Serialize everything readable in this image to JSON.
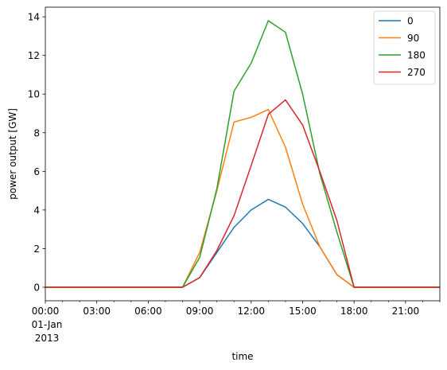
{
  "chart_data": {
    "type": "line",
    "title": "",
    "xlabel": "time",
    "ylabel": "power output [GW]",
    "xlim": [
      0,
      23
    ],
    "ylim": [
      -0.7,
      14.5
    ],
    "x": [
      0,
      1,
      2,
      3,
      4,
      5,
      6,
      7,
      8,
      9,
      10,
      11,
      12,
      13,
      14,
      15,
      16,
      17,
      18,
      19,
      20,
      21,
      22,
      23
    ],
    "x_ticks": [
      0,
      3,
      6,
      9,
      12,
      15,
      18,
      21
    ],
    "x_tick_labels": [
      "00:00",
      "03:00",
      "06:00",
      "09:00",
      "12:00",
      "15:00",
      "18:00",
      "21:00"
    ],
    "x_date_label": [
      "01-Jan",
      "2013"
    ],
    "y_ticks": [
      0,
      2,
      4,
      6,
      8,
      10,
      12,
      14
    ],
    "y_tick_labels": [
      "0",
      "2",
      "4",
      "6",
      "8",
      "10",
      "12",
      "14"
    ],
    "grid": false,
    "legend_position": "top-right",
    "series": [
      {
        "name": "0",
        "color": "#1f77b4",
        "values": [
          0,
          0,
          0,
          0,
          0,
          0,
          0,
          0,
          0,
          0.5,
          1.8,
          3.1,
          4.0,
          4.55,
          4.15,
          3.3,
          2.1,
          0.65,
          0,
          0,
          0,
          0,
          0,
          0
        ]
      },
      {
        "name": "90",
        "color": "#ff7f0e",
        "values": [
          0,
          0,
          0,
          0,
          0,
          0,
          0,
          0,
          0,
          1.8,
          5.0,
          8.55,
          8.8,
          9.2,
          7.25,
          4.3,
          2.1,
          0.65,
          0,
          0,
          0,
          0,
          0,
          0
        ]
      },
      {
        "name": "180",
        "color": "#2ca02c",
        "values": [
          0,
          0,
          0,
          0,
          0,
          0,
          0,
          0,
          0,
          1.55,
          5.1,
          10.15,
          11.6,
          13.8,
          13.2,
          10.0,
          5.9,
          2.85,
          0,
          0,
          0,
          0,
          0,
          0
        ]
      },
      {
        "name": "270",
        "color": "#d62728",
        "values": [
          0,
          0,
          0,
          0,
          0,
          0,
          0,
          0,
          0,
          0.5,
          1.9,
          3.7,
          6.3,
          8.95,
          9.7,
          8.4,
          6.0,
          3.45,
          0,
          0,
          0,
          0,
          0,
          0
        ]
      }
    ]
  }
}
